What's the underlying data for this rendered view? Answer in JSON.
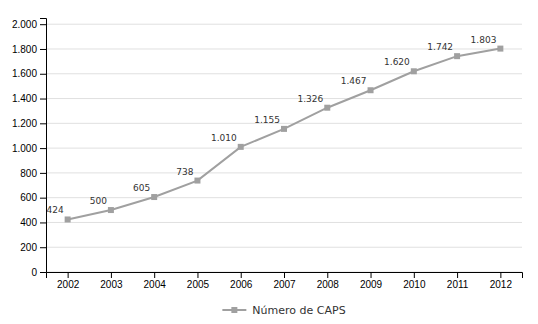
{
  "chart_data": {
    "type": "line",
    "x": [
      2002,
      2003,
      2004,
      2005,
      2006,
      2007,
      2008,
      2009,
      2010,
      2011,
      2012
    ],
    "series": [
      {
        "name": "Número de CAPS",
        "color": "#a0a0a0",
        "marker": "square",
        "values": [
          424,
          500,
          605,
          738,
          1010,
          1155,
          1326,
          1467,
          1620,
          1742,
          1803
        ],
        "value_labels": [
          "424",
          "500",
          "605",
          "738",
          "1.010",
          "1.155",
          "1.326",
          "1.467",
          "1.620",
          "1.742",
          "1.803"
        ]
      }
    ],
    "xlim": [
      2001.5,
      2012.5
    ],
    "xticks": [
      2002,
      2003,
      2004,
      2005,
      2006,
      2007,
      2008,
      2009,
      2010,
      2011,
      2012
    ],
    "ylim": [
      0,
      2050
    ],
    "yticks": [
      0,
      200,
      400,
      600,
      800,
      {
        "value": 1000,
        "label": "1.000"
      },
      {
        "value": 1200,
        "label": "1.200"
      },
      {
        "value": 1400,
        "label": "1.400"
      },
      {
        "value": 1600,
        "label": "1.600"
      },
      {
        "value": 1800,
        "label": "1.800"
      },
      {
        "value": 2000,
        "label": "2.000"
      }
    ],
    "grid": true,
    "data_labels": true,
    "legend": "bottom"
  }
}
